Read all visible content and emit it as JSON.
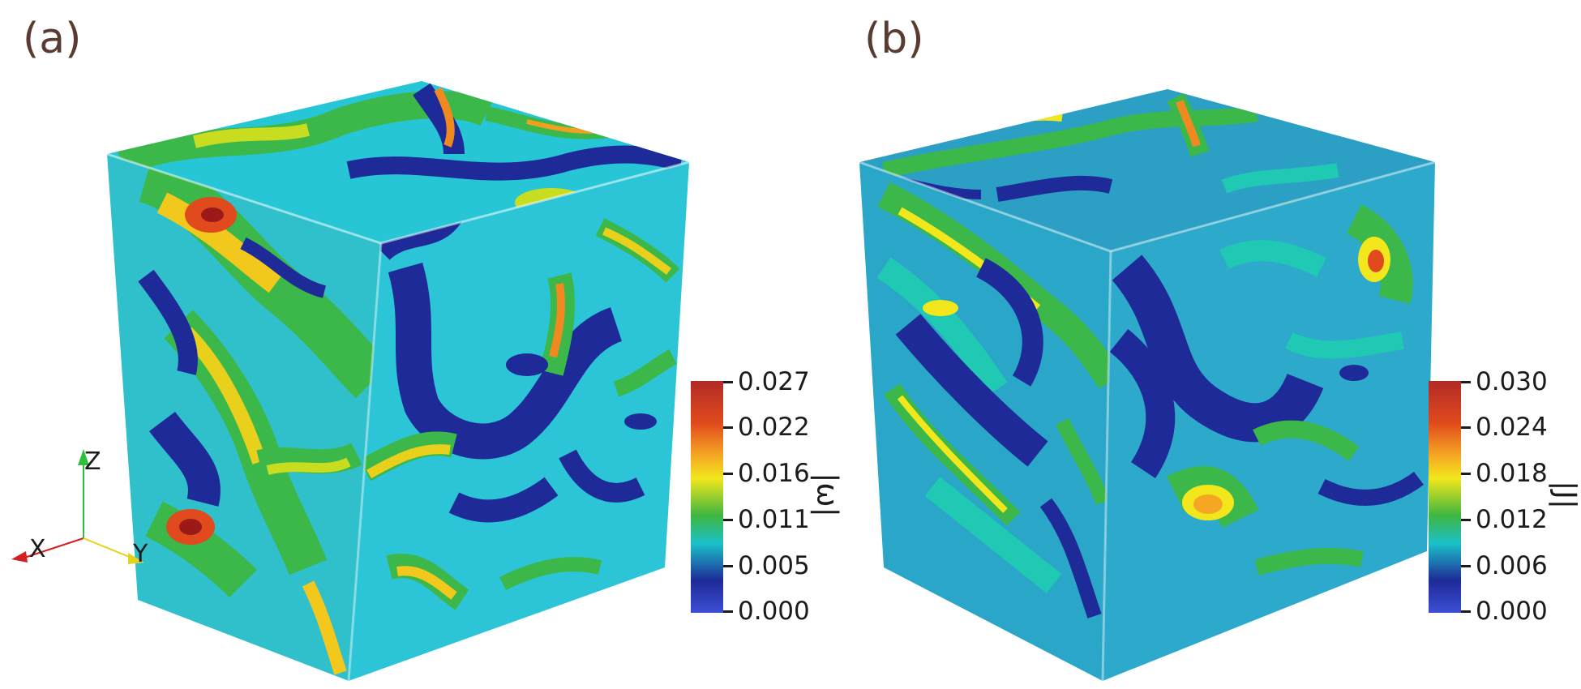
{
  "panels": [
    {
      "label": "(a)",
      "colorbar": {
        "title": "|ω|",
        "ticks": [
          "0.027",
          "0.022",
          "0.016",
          "0.011",
          "0.005",
          "0.000"
        ],
        "colors": [
          "#b22a27",
          "#e04a1c",
          "#f5a623",
          "#f2e71c",
          "#3fb640",
          "#1bc1c9",
          "#1e2a97",
          "#3c4fd6"
        ]
      }
    },
    {
      "label": "(b)",
      "colorbar": {
        "title": "|J|",
        "ticks": [
          "0.030",
          "0.024",
          "0.018",
          "0.012",
          "0.006",
          "0.000"
        ],
        "colors": [
          "#b22a27",
          "#e04a1c",
          "#f5a623",
          "#f2e71c",
          "#3fb640",
          "#1bc1c9",
          "#1e2a97",
          "#3c4fd6"
        ]
      }
    }
  ],
  "axes": {
    "z": "Z",
    "x": "X",
    "y": "Y"
  }
}
